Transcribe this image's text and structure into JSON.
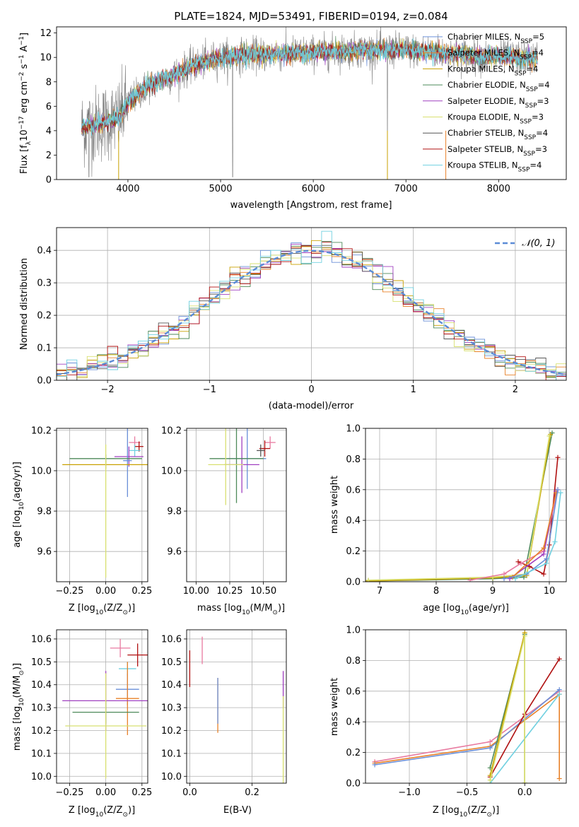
{
  "chart_data": [
    {
      "id": "spectrum",
      "type": "line",
      "title": "PLATE=1824, MJD=53491, FIBERID=0194, z=0.084",
      "xlabel": "wavelength [Angstrom, rest frame]",
      "ylabel": "Flux [f",
      "ylabel_sub": "λ",
      "ylabel_mid": "10",
      "ylabel_sup": "−17",
      "ylabel_tail": " erg cm",
      "ylabel_sup2": "−2",
      "ylabel_tail2": " s",
      "ylabel_sup3": "−1",
      "ylabel_tail3": " A",
      "ylabel_sup4": "−1",
      "ylabel_end": "]",
      "xlim": [
        3230,
        8730
      ],
      "ylim": [
        0,
        12.5
      ],
      "xticks": [
        "4000",
        "5000",
        "6000",
        "7000",
        "8000"
      ],
      "xtick_values": [
        4000,
        5000,
        6000,
        7000,
        8000
      ],
      "yticks": [
        "0",
        "2",
        "4",
        "6",
        "8",
        "10",
        "12"
      ],
      "ytick_values": [
        0,
        2,
        4,
        6,
        8,
        10,
        12
      ],
      "legend_position": "top-right",
      "series": [
        {
          "name": "Chabrier MILES, N",
          "sub": "SSP",
          "suffix": "=5",
          "color": "#6a8fd8"
        },
        {
          "name": "Salpeter MILES, N",
          "sub": "SSP",
          "suffix": "=4",
          "color": "#e8822a"
        },
        {
          "name": "Kroupa MILES, N",
          "sub": "SSP",
          "suffix": "=4",
          "color": "#c8a000"
        },
        {
          "name": "Chabrier ELODIE, N",
          "sub": "SSP",
          "suffix": "=4",
          "color": "#4e8a5a"
        },
        {
          "name": "Salpeter ELODIE, N",
          "sub": "SSP",
          "suffix": "=3",
          "color": "#a040c0"
        },
        {
          "name": "Kroupa ELODIE, N",
          "sub": "SSP",
          "suffix": "=3",
          "color": "#d8e070"
        },
        {
          "name": "Chabrier STELIB, N",
          "sub": "SSP",
          "suffix": "=4",
          "color": "#555555"
        },
        {
          "name": "Salpeter STELIB, N",
          "sub": "SSP",
          "suffix": "=3",
          "color": "#b01010"
        },
        {
          "name": "Kroupa STELIB, N",
          "sub": "SSP",
          "suffix": "=4",
          "color": "#70d0e0"
        }
      ],
      "data_color": "#808080",
      "continuum": [
        [
          3500,
          4.2
        ],
        [
          3700,
          4.6
        ],
        [
          3900,
          5.0
        ],
        [
          4000,
          6.3
        ],
        [
          4200,
          7.6
        ],
        [
          4500,
          8.6
        ],
        [
          4800,
          9.6
        ],
        [
          5000,
          10.0
        ],
        [
          5300,
          10.2
        ],
        [
          5600,
          10.3
        ],
        [
          6000,
          10.4
        ],
        [
          6500,
          10.6
        ],
        [
          7000,
          10.6
        ],
        [
          7400,
          10.4
        ],
        [
          7800,
          10.1
        ],
        [
          8200,
          10.0
        ],
        [
          8400,
          9.9
        ]
      ]
    },
    {
      "id": "residuals",
      "type": "histogram",
      "xlabel": "(data-model)/error",
      "ylabel": "Normed distribution",
      "xlim": [
        -2.5,
        2.5
      ],
      "ylim": [
        0,
        0.47
      ],
      "xticks": [
        "−2",
        "−1",
        "0",
        "1",
        "2"
      ],
      "xtick_values": [
        -2,
        -1,
        0,
        1,
        2
      ],
      "yticks": [
        "0.0",
        "0.1",
        "0.2",
        "0.3",
        "0.4"
      ],
      "ytick_values": [
        0,
        0.1,
        0.2,
        0.3,
        0.4
      ],
      "grid": true,
      "legend": "𝒩(0, 1)",
      "legend_position": "top-right",
      "reference_curve": "normal(0,1)"
    },
    {
      "id": "age-vs-Z",
      "type": "errorbar",
      "xlabel": "Z [log",
      "xlabel_sub": "10",
      "xlabel_tail": "(Z/Z",
      "xlabel_sub2": "⊙",
      "xlabel_end": ")]",
      "ylabel": "age  [log",
      "ylabel_sub": "10",
      "ylabel_tail": "(age/yr)]",
      "xlim": [
        -0.34,
        0.29
      ],
      "ylim": [
        9.45,
        10.21
      ],
      "xticks": [
        "−0.25",
        "0.00",
        "0.25"
      ],
      "xtick_values": [
        -0.25,
        0,
        0.25
      ],
      "yticks": [
        "9.6",
        "9.8",
        "10.0",
        "10.2"
      ],
      "ytick_values": [
        9.6,
        9.8,
        10.0,
        10.2
      ],
      "points": [
        {
          "x": 0.2,
          "y": 10.14,
          "xerr": 0.04,
          "yerr": 0.03,
          "color": "#e87aa0"
        },
        {
          "x": 0.23,
          "y": 10.12,
          "xerr": 0.03,
          "yerr": 0.025,
          "color": "#b01010"
        },
        {
          "x": 0.2,
          "y": 10.1,
          "xerr": 0.04,
          "yerr": 0.03,
          "color": "#70d0e0"
        },
        {
          "x": 0.16,
          "y": 10.07,
          "xerr": 0.1,
          "yerr": 0.05,
          "color": "#a040c0"
        },
        {
          "x": 0.15,
          "y": 10.05,
          "xerr": 0.03,
          "yerr": 0.18,
          "color": "#6a8fd8"
        },
        {
          "x": 0.0,
          "y": 10.06,
          "xerr": 0.25,
          "yerr": 0.02,
          "color": "#4e8a5a"
        },
        {
          "x": 0.0,
          "y": 10.03,
          "xerr": 0.3,
          "yerr": 0.02,
          "color": "#c8a000"
        },
        {
          "x": 0.0,
          "y": 9.8,
          "xerr": 0.003,
          "yerr": 0.33,
          "color": "#d8e070"
        }
      ]
    },
    {
      "id": "age-vs-mass",
      "type": "errorbar",
      "xlabel": "mass [log",
      "xlabel_sub": "10",
      "xlabel_tail": "(M/M",
      "xlabel_sub2": "⊙",
      "xlabel_end": ")]",
      "xlim": [
        9.93,
        10.67
      ],
      "ylim": [
        9.45,
        10.21
      ],
      "xticks": [
        "10.00",
        "10.25",
        "10.50"
      ],
      "xtick_values": [
        10.0,
        10.25,
        10.5
      ],
      "yticks": [
        "9.6",
        "9.8",
        "10.0",
        "10.2"
      ],
      "ytick_values": [
        9.6,
        9.8,
        10.0,
        10.2
      ],
      "points": [
        {
          "x": 10.55,
          "y": 10.14,
          "xerr": 0.04,
          "yerr": 0.03,
          "color": "#e87aa0"
        },
        {
          "x": 10.51,
          "y": 10.11,
          "xerr": 0.04,
          "yerr": 0.04,
          "color": "#b01010"
        },
        {
          "x": 10.48,
          "y": 10.1,
          "xerr": 0.03,
          "yerr": 0.03,
          "color": "#555555"
        },
        {
          "x": 10.38,
          "y": 10.06,
          "xerr": 0.14,
          "yerr": 0.15,
          "color": "#6a8fd8"
        },
        {
          "x": 10.34,
          "y": 10.03,
          "xerr": 0.13,
          "yerr": 0.14,
          "color": "#a040c0"
        },
        {
          "x": 10.3,
          "y": 10.06,
          "xerr": 0.2,
          "yerr": 0.22,
          "color": "#4e8a5a"
        },
        {
          "x": 10.22,
          "y": 10.03,
          "xerr": 0.13,
          "yerr": 0.2,
          "color": "#d8e070"
        }
      ]
    },
    {
      "id": "weight-vs-age",
      "type": "line",
      "xlabel": "age  [log",
      "xlabel_sub": "10",
      "xlabel_tail": "(age/yr)]",
      "ylabel": "mass weight",
      "xlim": [
        6.75,
        10.3
      ],
      "ylim": [
        0,
        1.0
      ],
      "xticks": [
        "7",
        "8",
        "9",
        "10"
      ],
      "xtick_values": [
        7,
        8,
        9,
        10
      ],
      "yticks": [
        "0.0",
        "0.2",
        "0.4",
        "0.6",
        "0.8",
        "1.0"
      ],
      "ytick_values": [
        0,
        0.2,
        0.4,
        0.6,
        0.8,
        1.0
      ],
      "grid": true,
      "series": [
        {
          "color": "#4e8a5a",
          "points": [
            [
              6.8,
              0.005
            ],
            [
              9.0,
              0.02
            ],
            [
              9.55,
              0.03
            ],
            [
              10.05,
              0.97
            ]
          ]
        },
        {
          "color": "#c8a000",
          "points": [
            [
              6.8,
              0.005
            ],
            [
              9.0,
              0.025
            ],
            [
              9.6,
              0.04
            ],
            [
              10.02,
              0.96
            ]
          ]
        },
        {
          "color": "#d8e070",
          "points": [
            [
              6.8,
              0.01
            ],
            [
              9.0,
              0.03
            ],
            [
              9.6,
              0.05
            ],
            [
              10.0,
              0.95
            ]
          ]
        },
        {
          "color": "#b01010",
          "points": [
            [
              9.45,
              0.13
            ],
            [
              9.65,
              0.1
            ],
            [
              9.9,
              0.05
            ],
            [
              10.0,
              0.24
            ],
            [
              10.15,
              0.81
            ]
          ]
        },
        {
          "color": "#e87aa0",
          "points": [
            [
              8.6,
              0.01
            ],
            [
              9.2,
              0.05
            ],
            [
              9.5,
              0.12
            ],
            [
              9.9,
              0.2
            ],
            [
              10.15,
              0.6
            ]
          ]
        },
        {
          "color": "#a040c0",
          "points": [
            [
              9.3,
              0.02
            ],
            [
              9.9,
              0.18
            ],
            [
              10.12,
              0.59
            ]
          ]
        },
        {
          "color": "#e8822a",
          "points": [
            [
              9.35,
              0.03
            ],
            [
              9.9,
              0.22
            ],
            [
              10.12,
              0.58
            ]
          ]
        },
        {
          "color": "#6a8fd8",
          "points": [
            [
              9.2,
              0.02
            ],
            [
              9.6,
              0.05
            ],
            [
              9.95,
              0.15
            ],
            [
              10.15,
              0.6
            ]
          ]
        },
        {
          "color": "#70d0e0",
          "points": [
            [
              9.4,
              0.02
            ],
            [
              9.95,
              0.12
            ],
            [
              10.1,
              0.26
            ],
            [
              10.2,
              0.58
            ]
          ]
        }
      ]
    },
    {
      "id": "mass-vs-Z",
      "type": "errorbar",
      "xlabel": "Z [log",
      "xlabel_sub": "10",
      "xlabel_tail": "(Z/Z",
      "xlabel_sub2": "⊙",
      "xlabel_end": ")]",
      "ylabel": "mass [log",
      "ylabel_sub": "10",
      "ylabel_tail": "(M/M",
      "ylabel_sub2": "⊙",
      "ylabel_end": ")]",
      "xlim": [
        -0.34,
        0.29
      ],
      "ylim": [
        9.97,
        10.64
      ],
      "xticks": [
        "−0.25",
        "0.00",
        "0.25"
      ],
      "xtick_values": [
        -0.25,
        0,
        0.25
      ],
      "yticks": [
        "10.0",
        "10.1",
        "10.2",
        "10.3",
        "10.4",
        "10.5",
        "10.6"
      ],
      "ytick_values": [
        10.0,
        10.1,
        10.2,
        10.3,
        10.4,
        10.5,
        10.6
      ],
      "points": [
        {
          "x": 0.1,
          "y": 10.56,
          "xerr": 0.07,
          "yerr": 0.04,
          "color": "#e87aa0"
        },
        {
          "x": 0.22,
          "y": 10.53,
          "xerr": 0.07,
          "yerr": 0.05,
          "color": "#b01010"
        },
        {
          "x": 0.15,
          "y": 10.47,
          "xerr": 0.06,
          "yerr": 0.03,
          "color": "#70d0e0"
        },
        {
          "x": 0.15,
          "y": 10.38,
          "xerr": 0.08,
          "yerr": 0.07,
          "color": "#6a8fd8"
        },
        {
          "x": 0.15,
          "y": 10.34,
          "xerr": 0.08,
          "yerr": 0.16,
          "color": "#e8822a"
        },
        {
          "x": 0.0,
          "y": 10.33,
          "xerr": 0.3,
          "yerr": 0.13,
          "color": "#a040c0"
        },
        {
          "x": 0.0,
          "y": 10.28,
          "xerr": 0.23,
          "yerr": 0.05,
          "color": "#4e8a5a"
        },
        {
          "x": 0.0,
          "y": 10.22,
          "xerr": 0.28,
          "yerr": 0.23,
          "color": "#d8e070"
        }
      ]
    },
    {
      "id": "mass-vs-ebv",
      "type": "errorbar",
      "xlabel": "E(B-V)",
      "xlim": [
        -0.01,
        0.31
      ],
      "ylim": [
        9.97,
        10.64
      ],
      "xticks": [
        "0.0",
        "0.2"
      ],
      "xtick_values": [
        0.0,
        0.2
      ],
      "yticks": [
        "10.0",
        "10.1",
        "10.2",
        "10.3",
        "10.4",
        "10.5",
        "10.6"
      ],
      "ytick_values": [
        10.0,
        10.1,
        10.2,
        10.3,
        10.4,
        10.5,
        10.6
      ],
      "points": [
        {
          "x": 0.0,
          "y": 10.47,
          "xerr": 0,
          "yerr": 0.08,
          "color": "#b01010"
        },
        {
          "x": 0.04,
          "y": 10.55,
          "xerr": 0,
          "yerr": 0.06,
          "color": "#e87aa0"
        },
        {
          "x": 0.09,
          "y": 10.31,
          "xerr": 0,
          "yerr": 0.12,
          "color": "#e8822a"
        },
        {
          "x": 0.09,
          "y": 10.33,
          "xerr": 0,
          "yerr": 0.1,
          "color": "#6a8fd8"
        },
        {
          "x": 0.3,
          "y": 10.38,
          "xerr": 0,
          "yerr": 0.08,
          "color": "#a040c0"
        },
        {
          "x": 0.3,
          "y": 10.15,
          "xerr": 0,
          "yerr": 0.2,
          "color": "#d8e070"
        }
      ]
    },
    {
      "id": "weight-vs-Z",
      "type": "line",
      "xlabel": "Z [log",
      "xlabel_sub": "10",
      "xlabel_tail": "(Z/Z",
      "xlabel_sub2": "⊙",
      "xlabel_end": ")]",
      "ylabel": "mass weight",
      "xlim": [
        -1.38,
        0.36
      ],
      "ylim": [
        0,
        1.0
      ],
      "xticks": [
        "−1.0",
        "−0.5",
        "0.0"
      ],
      "xtick_values": [
        -1.0,
        -0.5,
        0.0
      ],
      "yticks": [
        "0.0",
        "0.2",
        "0.4",
        "0.6",
        "0.8",
        "1.0"
      ],
      "ytick_values": [
        0,
        0.2,
        0.4,
        0.6,
        0.8,
        1.0
      ],
      "grid": true,
      "series": [
        {
          "color": "#e87aa0",
          "points": [
            [
              -1.3,
              0.14
            ],
            [
              -0.3,
              0.27
            ],
            [
              0.3,
              0.6
            ]
          ]
        },
        {
          "color": "#e8822a",
          "points": [
            [
              -1.3,
              0.13
            ],
            [
              -0.3,
              0.24
            ],
            [
              0.3,
              0.58
            ],
            [
              0.3,
              0.03
            ]
          ]
        },
        {
          "color": "#6a8fd8",
          "points": [
            [
              -1.3,
              0.12
            ],
            [
              -0.3,
              0.23
            ],
            [
              0.3,
              0.61
            ]
          ]
        },
        {
          "color": "#b01010",
          "points": [
            [
              -0.3,
              0.04
            ],
            [
              0.0,
              0.45
            ],
            [
              0.3,
              0.81
            ]
          ]
        },
        {
          "color": "#70d0e0",
          "points": [
            [
              -0.3,
              0.0
            ],
            [
              0.3,
              0.58
            ]
          ]
        },
        {
          "color": "#4e8a5a",
          "points": [
            [
              -0.3,
              0.1
            ],
            [
              0.0,
              0.97
            ],
            [
              0.0,
              0.0
            ]
          ]
        },
        {
          "color": "#c8a000",
          "points": [
            [
              -0.3,
              0.05
            ],
            [
              0.0,
              0.98
            ],
            [
              0.0,
              0.0
            ]
          ]
        },
        {
          "color": "#d8e070",
          "points": [
            [
              -0.3,
              0.02
            ],
            [
              0.0,
              0.96
            ],
            [
              0.0,
              0.0
            ]
          ]
        }
      ]
    }
  ]
}
